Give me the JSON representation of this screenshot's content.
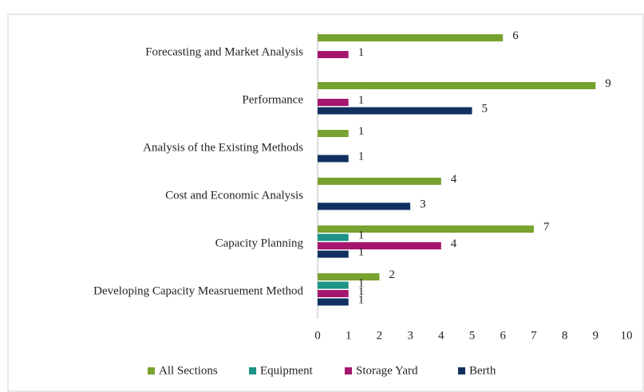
{
  "chart_data": {
    "type": "hbar",
    "categories": [
      "Forecasting and Market Analysis",
      "Performance",
      "Analysis of the Existing Methods",
      "Cost and Economic Analysis",
      "Capacity Planning",
      "Developing Capacity Measruement Method"
    ],
    "series": [
      {
        "name": "All Sections",
        "color": "#78a22f",
        "values": [
          6,
          9,
          1,
          4,
          7,
          2
        ]
      },
      {
        "name": "Equipment",
        "color": "#1d9485",
        "values": [
          null,
          null,
          null,
          null,
          1,
          1
        ]
      },
      {
        "name": "Storage Yard",
        "color": "#a5176f",
        "values": [
          1,
          1,
          null,
          null,
          4,
          1
        ]
      },
      {
        "name": "Berth",
        "color": "#10305f",
        "values": [
          null,
          5,
          1,
          3,
          1,
          1
        ]
      }
    ],
    "xlim": [
      0,
      10
    ],
    "xticks": [
      0,
      1,
      2,
      3,
      4,
      5,
      6,
      7,
      8,
      9,
      10
    ],
    "grid": false,
    "legend": "bottom"
  }
}
